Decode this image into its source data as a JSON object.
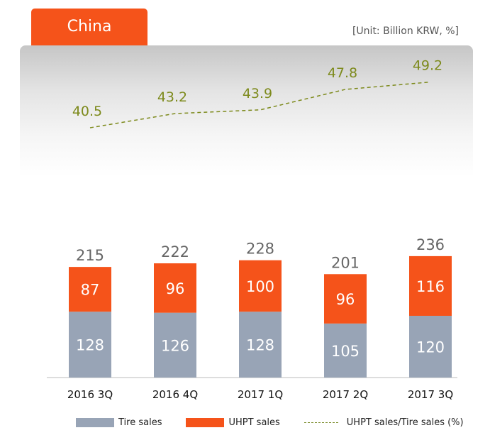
{
  "header": {
    "region": "China",
    "unit": "[Unit: Billion KRW, %]"
  },
  "colors": {
    "tire": "#98a4b6",
    "uhpt": "#f5531a",
    "ratio": "#7d8a1c",
    "total_label": "#666666",
    "bar_text": "#ffffff"
  },
  "chart_data": {
    "type": "bar",
    "stacked": true,
    "categories": [
      "2016 3Q",
      "2016 4Q",
      "2017 1Q",
      "2017 2Q",
      "2017 3Q"
    ],
    "series": [
      {
        "name": "Tire sales",
        "values": [
          128,
          126,
          128,
          105,
          120
        ]
      },
      {
        "name": "UHPT sales",
        "values": [
          87,
          96,
          100,
          96,
          116
        ]
      }
    ],
    "totals": [
      215,
      222,
      228,
      201,
      236
    ],
    "line_series": {
      "name": "UHPT sales/Tire sales (%)",
      "values": [
        40.5,
        43.2,
        43.9,
        47.8,
        49.2
      ],
      "style": "dashed"
    },
    "title": "China",
    "xlabel": "",
    "ylabel": "",
    "unit": "Billion KRW, %",
    "legend_position": "bottom"
  }
}
